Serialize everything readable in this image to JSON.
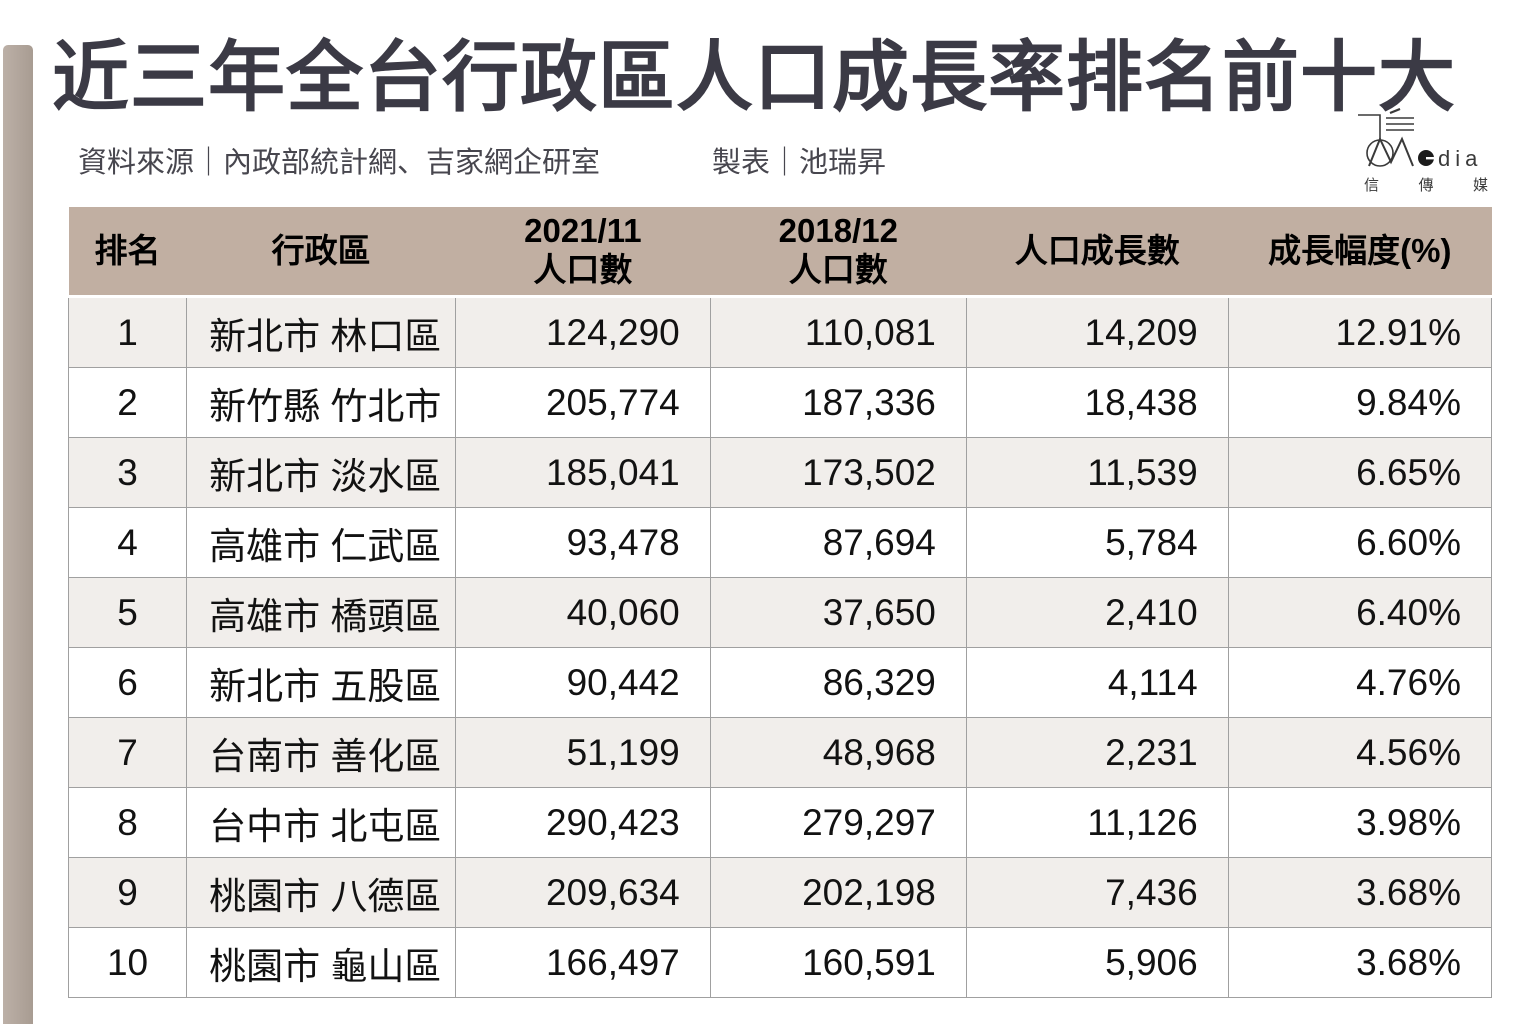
{
  "title": "近三年全台行政區人口成長率排名前十大",
  "meta": {
    "source_label": "資料來源｜內政部統計網、吉家網企研室",
    "author_label": "製表｜池瑞昇"
  },
  "logo": {
    "latin_suffix": "dia",
    "cjk_chars": [
      "信",
      "傳",
      "媒"
    ]
  },
  "colors": {
    "header_bg": "#c1afa2",
    "row_alt": "#f1eeeb",
    "border": "#a0a0a0",
    "title_text": "#3b3a45",
    "meta_text": "#47464e",
    "stripe": "#b3a79d"
  },
  "table": {
    "columns": [
      {
        "key": "rank",
        "label_lines": [
          "排名"
        ]
      },
      {
        "key": "district",
        "label_lines": [
          "行政區"
        ]
      },
      {
        "key": "pop2021",
        "label_lines": [
          "2021/11",
          "人口數"
        ]
      },
      {
        "key": "pop2018",
        "label_lines": [
          "2018/12",
          "人口數"
        ]
      },
      {
        "key": "growth",
        "label_lines": [
          "人口成長數"
        ]
      },
      {
        "key": "pct",
        "label_lines": [
          "成長幅度(%)"
        ]
      }
    ],
    "rows": [
      {
        "rank": "1",
        "district": "新北市 林口區",
        "pop2021": "124,290",
        "pop2018": "110,081",
        "growth": "14,209",
        "pct": "12.91%"
      },
      {
        "rank": "2",
        "district": "新竹縣 竹北市",
        "pop2021": "205,774",
        "pop2018": "187,336",
        "growth": "18,438",
        "pct": "9.84%"
      },
      {
        "rank": "3",
        "district": "新北市 淡水區",
        "pop2021": "185,041",
        "pop2018": "173,502",
        "growth": "11,539",
        "pct": "6.65%"
      },
      {
        "rank": "4",
        "district": "高雄市 仁武區",
        "pop2021": "93,478",
        "pop2018": "87,694",
        "growth": "5,784",
        "pct": "6.60%"
      },
      {
        "rank": "5",
        "district": "高雄市 橋頭區",
        "pop2021": "40,060",
        "pop2018": "37,650",
        "growth": "2,410",
        "pct": "6.40%"
      },
      {
        "rank": "6",
        "district": "新北市 五股區",
        "pop2021": "90,442",
        "pop2018": "86,329",
        "growth": "4,114",
        "pct": "4.76%"
      },
      {
        "rank": "7",
        "district": "台南市 善化區",
        "pop2021": "51,199",
        "pop2018": "48,968",
        "growth": "2,231",
        "pct": "4.56%"
      },
      {
        "rank": "8",
        "district": "台中市 北屯區",
        "pop2021": "290,423",
        "pop2018": "279,297",
        "growth": "11,126",
        "pct": "3.98%"
      },
      {
        "rank": "9",
        "district": "桃園市 八德區",
        "pop2021": "209,634",
        "pop2018": "202,198",
        "growth": "7,436",
        "pct": "3.68%"
      },
      {
        "rank": "10",
        "district": "桃園市 龜山區",
        "pop2021": "166,497",
        "pop2018": "160,591",
        "growth": "5,906",
        "pct": "3.68%"
      }
    ]
  },
  "chart_data": {
    "type": "table",
    "title": "近三年全台行政區人口成長率排名前十大",
    "columns": [
      "排名",
      "行政區",
      "2021/11 人口數",
      "2018/12 人口數",
      "人口成長數",
      "成長幅度(%)"
    ],
    "rows": [
      [
        1,
        "新北市 林口區",
        124290,
        110081,
        14209,
        12.91
      ],
      [
        2,
        "新竹縣 竹北市",
        205774,
        187336,
        18438,
        9.84
      ],
      [
        3,
        "新北市 淡水區",
        185041,
        173502,
        11539,
        6.65
      ],
      [
        4,
        "高雄市 仁武區",
        93478,
        87694,
        5784,
        6.6
      ],
      [
        5,
        "高雄市 橋頭區",
        40060,
        37650,
        2410,
        6.4
      ],
      [
        6,
        "新北市 五股區",
        90442,
        86329,
        4114,
        4.76
      ],
      [
        7,
        "台南市 善化區",
        51199,
        48968,
        2231,
        4.56
      ],
      [
        8,
        "台中市 北屯區",
        290423,
        279297,
        11126,
        3.98
      ],
      [
        9,
        "桃園市 八德區",
        209634,
        202198,
        7436,
        3.68
      ],
      [
        10,
        "桃園市 龜山區",
        166497,
        160591,
        5906,
        3.68
      ]
    ]
  }
}
